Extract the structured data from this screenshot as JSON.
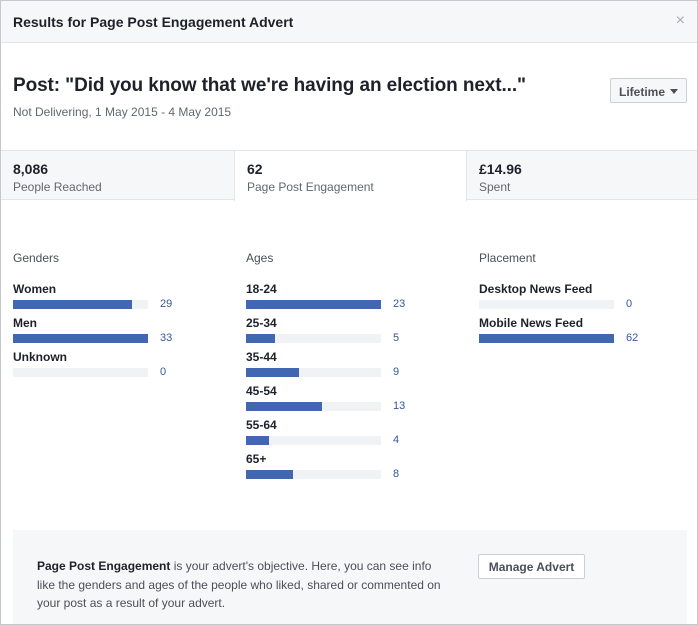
{
  "dialog": {
    "title": "Results for Page Post Engagement Advert",
    "close_glyph": "×"
  },
  "post": {
    "title": "Post: \"Did you know that we're having an election next...\"",
    "subtitle": "Not Delivering, 1 May 2015 - 4 May 2015",
    "range_select": "Lifetime"
  },
  "stats": [
    {
      "value": "8,086",
      "label": "People Reached"
    },
    {
      "value": "62",
      "label": "Page Post Engagement",
      "selected": true
    },
    {
      "value": "£14.96",
      "label": "Spent"
    }
  ],
  "genders": {
    "heading": "Genders",
    "rows": [
      {
        "label": "Women",
        "value": 29
      },
      {
        "label": "Men",
        "value": 33
      },
      {
        "label": "Unknown",
        "value": 0
      }
    ]
  },
  "ages": {
    "heading": "Ages",
    "rows": [
      {
        "label": "18-24",
        "value": 23
      },
      {
        "label": "25-34",
        "value": 5
      },
      {
        "label": "35-44",
        "value": 9
      },
      {
        "label": "45-54",
        "value": 13
      },
      {
        "label": "55-64",
        "value": 4
      },
      {
        "label": "65+",
        "value": 8
      }
    ]
  },
  "placement": {
    "heading": "Placement",
    "rows": [
      {
        "label": "Desktop News Feed",
        "value": 0
      },
      {
        "label": "Mobile News Feed",
        "value": 62
      }
    ]
  },
  "footer": {
    "objective_bold": "Page Post Engagement",
    "objective_text": " is your advert's objective. Here, you can see info like the genders and ages of the people who liked, shared or commented on your post as a result of your advert.",
    "manage_button": "Manage Advert"
  },
  "colors": {
    "bar_fill": "#4267b2",
    "bar_track": "#f1f2f4",
    "value_link": "#365899"
  }
}
